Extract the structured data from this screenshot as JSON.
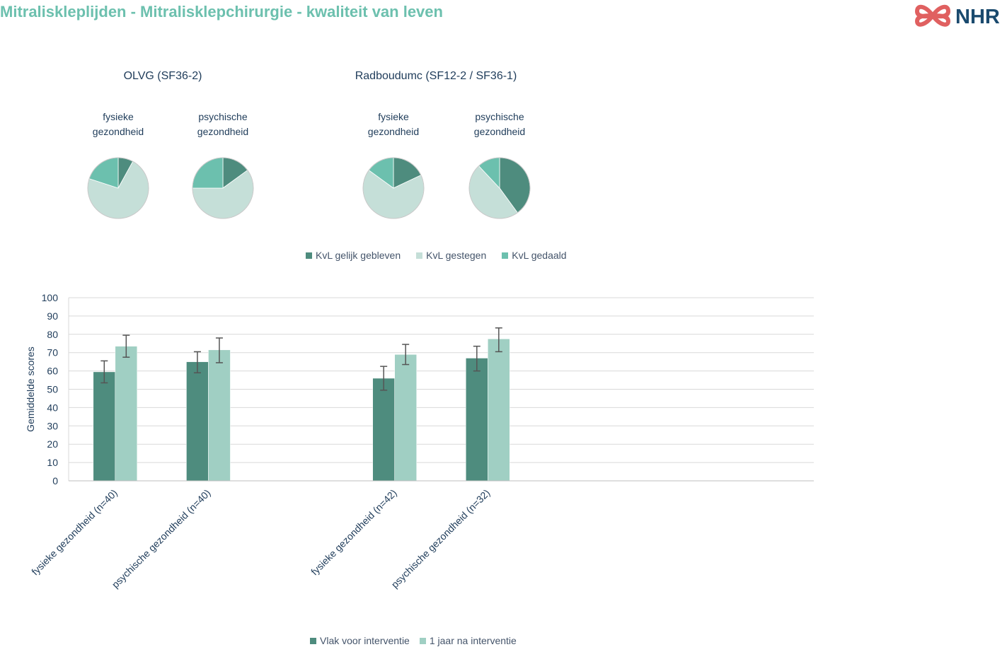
{
  "page_title": "Mitraliskleplijden - Mitralisklepchirurgie - kwaliteit van leven",
  "logo": {
    "text": "NHR",
    "brand_color": "#e06060",
    "text_color": "#1a4a6e"
  },
  "colors": {
    "dark_green": "#4e8c7e",
    "light_gray_green": "#c5dfd8",
    "medium_teal": "#6cc0ae",
    "light_teal": "#a0cfc3"
  },
  "chart_data": [
    {
      "type": "pie",
      "group_titles": [
        "OLVG (SF36-2)",
        "Radboudumc (SF12-2 / SF36-1)"
      ],
      "categories": [
        "KvL gelijk gebleven",
        "KvL gestegen",
        "KvL gedaald"
      ],
      "pies": [
        {
          "group": "OLVG (SF36-2)",
          "title_lines": [
            "fysieke",
            "gezondheid"
          ],
          "values": [
            8,
            72,
            20
          ]
        },
        {
          "group": "OLVG (SF36-2)",
          "title_lines": [
            "psychische",
            "gezondheid"
          ],
          "values": [
            15,
            60,
            25
          ]
        },
        {
          "group": "Radboudumc (SF12-2 / SF36-1)",
          "title_lines": [
            "fysieke",
            "gezondheid"
          ],
          "values": [
            18,
            67,
            15
          ]
        },
        {
          "group": "Radboudumc (SF12-2 / SF36-1)",
          "title_lines": [
            "psychische",
            "gezondheid"
          ],
          "values": [
            40,
            48,
            12
          ]
        }
      ],
      "legend": {
        "placement": "bottom",
        "labels": [
          "KvL gelijk gebleven",
          "KvL gestegen",
          "KvL gedaald"
        ]
      }
    },
    {
      "type": "bar",
      "ylabel": "Gemiddelde scores",
      "ylim": [
        0,
        100
      ],
      "yticks": [
        0,
        10,
        20,
        30,
        40,
        50,
        60,
        70,
        80,
        90,
        100
      ],
      "grid": true,
      "categories": [
        "fysieke gezondheid (n=40)",
        "psychische gezondheid (n=40)",
        "",
        "fysieke gezondheid (n=42)",
        "psychische gezondheid (n=32)",
        "",
        "",
        ""
      ],
      "series": [
        {
          "name": "Vlak voor interventie",
          "values": [
            59.5,
            65,
            null,
            56,
            67,
            null,
            null,
            null
          ],
          "error_low": [
            53.5,
            59,
            null,
            49.5,
            60,
            null,
            null,
            null
          ],
          "error_high": [
            65.5,
            70.5,
            null,
            62.5,
            73.5,
            null,
            null,
            null
          ]
        },
        {
          "name": "1 jaar na interventie",
          "values": [
            73.5,
            71.5,
            null,
            69,
            77.5,
            null,
            null,
            null
          ],
          "error_low": [
            67.5,
            64.5,
            null,
            63.5,
            70.5,
            null,
            null,
            null
          ],
          "error_high": [
            79.5,
            78,
            null,
            74.5,
            83.5,
            null,
            null,
            null
          ]
        }
      ],
      "legend": {
        "placement": "bottom",
        "labels": [
          "Vlak voor interventie",
          "1 jaar na interventie"
        ]
      }
    }
  ]
}
